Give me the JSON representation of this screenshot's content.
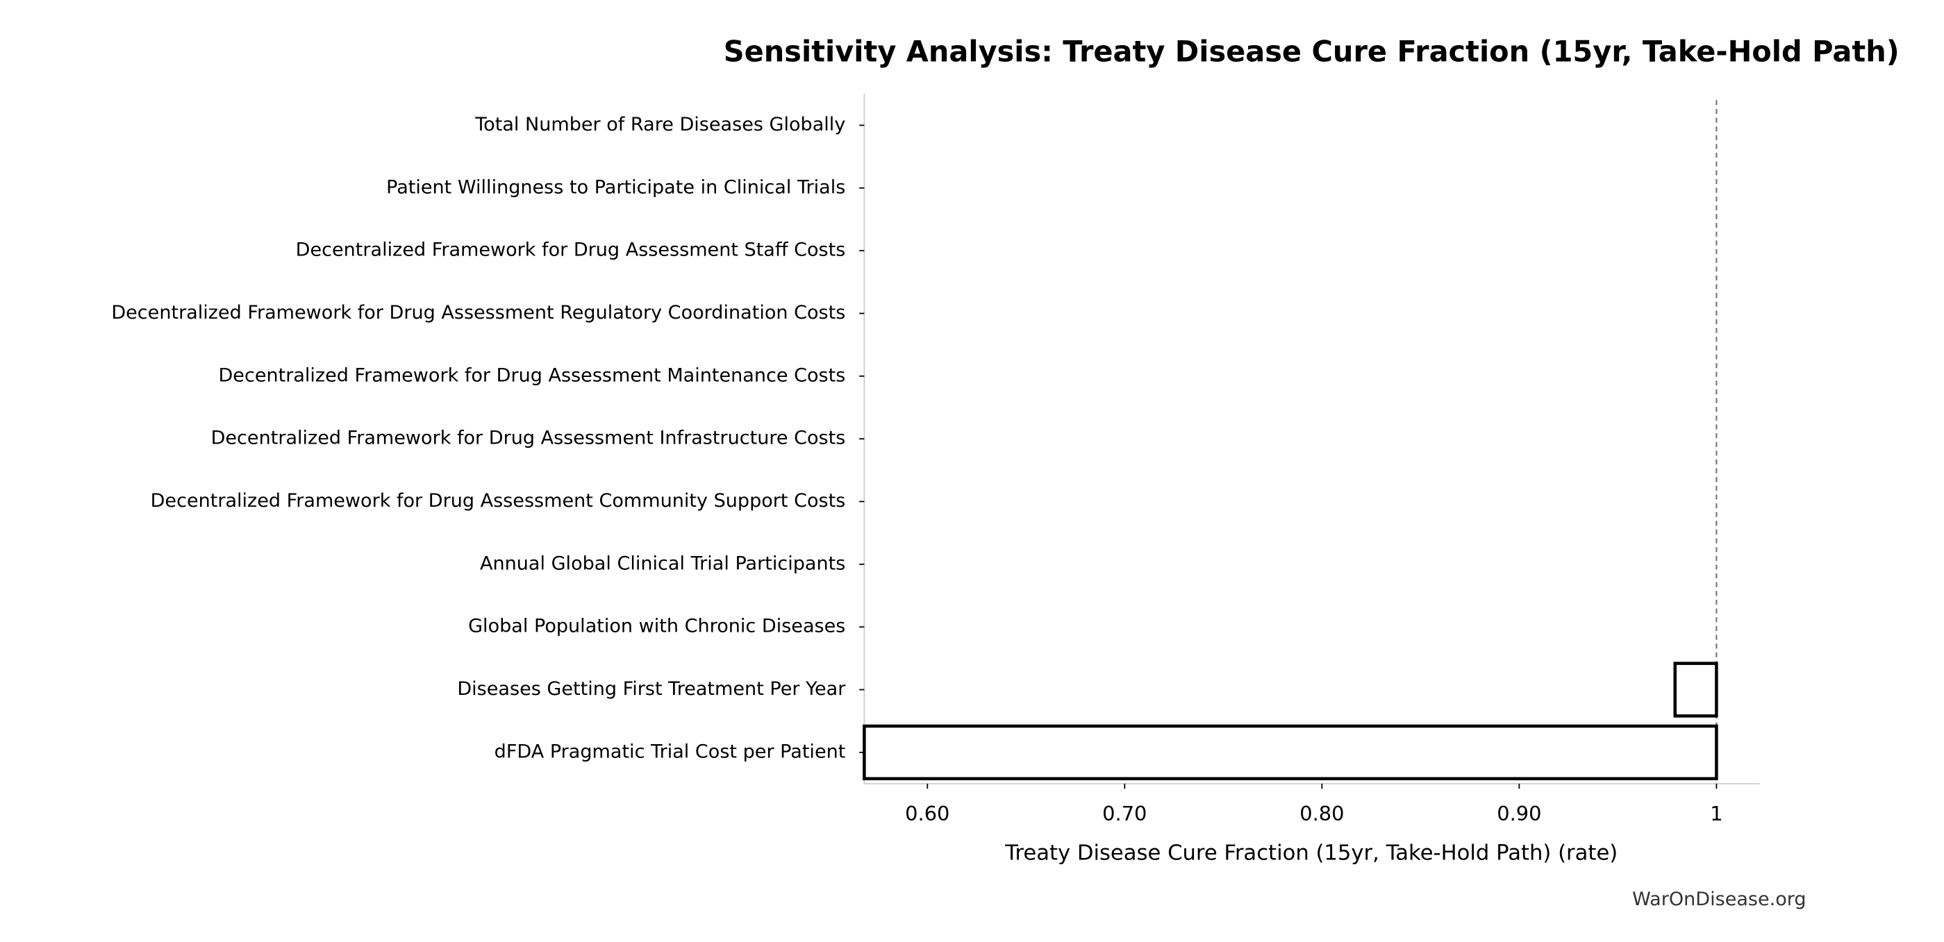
{
  "chart_data": {
    "type": "tornado",
    "title": "Sensitivity Analysis: Treaty Disease Cure Fraction (15yr, Take-Hold Path)",
    "x_label": "Treaty Disease Cure Fraction (15yr, Take-Hold Path) (rate)",
    "watermark": "WarOnDisease.org",
    "categories": [
      "Total Number of Rare Diseases Globally",
      "Patient Willingness to Participate in Clinical Trials",
      "Decentralized Framework for Drug Assessment Staff Costs",
      "Decentralized Framework for Drug Assessment Regulatory Coordination Costs",
      "Decentralized Framework for Drug Assessment Maintenance Costs",
      "Decentralized Framework for Drug Assessment Infrastructure Costs",
      "Decentralized Framework for Drug Assessment Community Support Costs",
      "Annual Global Clinical Trial Participants",
      "Global Population with Chronic Diseases",
      "Diseases Getting First Treatment Per Year",
      "dFDA Pragmatic Trial Cost per Patient"
    ],
    "low": [
      1,
      1,
      1,
      1,
      1,
      1,
      1,
      1,
      1,
      0.979,
      0.568
    ],
    "high": [
      1,
      1,
      1,
      1,
      1,
      1,
      1,
      1,
      1,
      1,
      1
    ],
    "baseline": 1,
    "bar_color": "#ffffff",
    "edge_color": "#000000",
    "xlim": [
      0.568,
      1.022
    ],
    "xticks": [
      {
        "value": 0.6,
        "label": "0.60"
      },
      {
        "value": 0.7,
        "label": "0.70"
      },
      {
        "value": 0.8,
        "label": "0.80"
      },
      {
        "value": 0.9,
        "label": "0.90"
      },
      1
    ]
  }
}
